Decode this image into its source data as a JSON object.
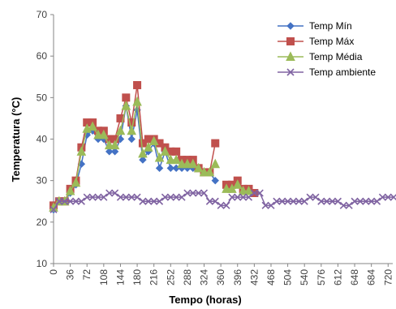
{
  "chart_data": {
    "type": "line",
    "xlabel": "Tempo (horas)",
    "ylabel": "Temperatura (°C)",
    "ylim": [
      10,
      70
    ],
    "y_ticks": [
      10,
      20,
      30,
      40,
      50,
      60,
      70
    ],
    "xlim": [
      0,
      730
    ],
    "x_ticks": [
      0,
      36,
      72,
      108,
      144,
      180,
      216,
      252,
      288,
      324,
      360,
      396,
      432,
      468,
      504,
      540,
      576,
      612,
      648,
      684,
      720
    ],
    "grid": false,
    "legend_position": "top-right",
    "series": [
      {
        "name": "Temp Mín",
        "color": "#4472C4",
        "marker": "diamond",
        "x": [
          0,
          12,
          24,
          36,
          48,
          60,
          72,
          84,
          96,
          108,
          120,
          132,
          144,
          156,
          168,
          180,
          192,
          204,
          216,
          228,
          240,
          252,
          264,
          276,
          288,
          300,
          312,
          324,
          336,
          348
        ],
        "y": [
          23,
          25,
          25,
          27,
          29,
          34,
          41,
          42,
          40,
          40,
          37,
          37,
          40,
          48,
          40,
          47,
          35,
          37,
          39,
          33,
          37,
          33,
          33,
          33,
          33,
          33,
          33,
          32,
          32,
          30
        ]
      },
      {
        "name": "Temp Máx",
        "color": "#C0504D",
        "marker": "square",
        "x": [
          0,
          12,
          24,
          36,
          48,
          60,
          72,
          84,
          96,
          108,
          120,
          132,
          144,
          156,
          168,
          180,
          192,
          204,
          216,
          228,
          240,
          252,
          264,
          276,
          288,
          300,
          312,
          324,
          336,
          348,
          null,
          372,
          384,
          396,
          408,
          420,
          432
        ],
        "y": [
          24,
          25,
          25,
          28,
          30,
          38,
          44,
          44,
          42,
          42,
          40,
          40,
          45,
          50,
          44,
          53,
          39,
          40,
          40,
          39,
          38,
          37,
          37,
          35,
          35,
          35,
          33,
          32,
          32,
          39,
          null,
          29,
          29,
          30,
          28,
          28,
          27
        ]
      },
      {
        "name": "Temp Média",
        "color": "#9BBB59",
        "marker": "triangle",
        "x": [
          0,
          12,
          24,
          36,
          48,
          60,
          72,
          84,
          96,
          108,
          120,
          132,
          144,
          156,
          168,
          180,
          192,
          204,
          216,
          228,
          240,
          252,
          264,
          276,
          288,
          300,
          312,
          324,
          336,
          348,
          null,
          372,
          384,
          396,
          408,
          420
        ],
        "y": [
          23.5,
          25,
          25,
          27.5,
          29.5,
          37,
          42.5,
          43,
          41,
          41,
          38.5,
          38.5,
          42,
          48,
          42,
          49,
          36.5,
          38,
          39.5,
          35.5,
          37,
          35,
          35,
          34,
          34,
          34,
          33,
          32,
          32,
          34,
          null,
          28,
          28,
          29,
          27.5,
          27.5
        ]
      },
      {
        "name": "Temp ambiente",
        "color": "#8064A2",
        "marker": "x",
        "x": [
          0,
          12,
          24,
          36,
          48,
          60,
          72,
          84,
          96,
          108,
          120,
          132,
          144,
          156,
          168,
          180,
          192,
          204,
          216,
          228,
          240,
          252,
          264,
          276,
          288,
          300,
          312,
          324,
          336,
          348,
          360,
          372,
          384,
          396,
          408,
          420,
          432,
          444,
          456,
          468,
          480,
          492,
          504,
          516,
          528,
          540,
          552,
          564,
          576,
          588,
          600,
          612,
          624,
          636,
          648,
          660,
          672,
          684,
          696,
          708,
          720,
          732
        ],
        "y": [
          23,
          25,
          25,
          25,
          25,
          25,
          26,
          26,
          26,
          26,
          27,
          27,
          26,
          26,
          26,
          26,
          25,
          25,
          25,
          25,
          26,
          26,
          26,
          26,
          27,
          27,
          27,
          27,
          25,
          25,
          24,
          24,
          26,
          26,
          26,
          26,
          27,
          27,
          24,
          24,
          25,
          25,
          25,
          25,
          25,
          25,
          26,
          26,
          25,
          25,
          25,
          25,
          24,
          24,
          25,
          25,
          25,
          25,
          25,
          26,
          26,
          26
        ]
      }
    ]
  }
}
